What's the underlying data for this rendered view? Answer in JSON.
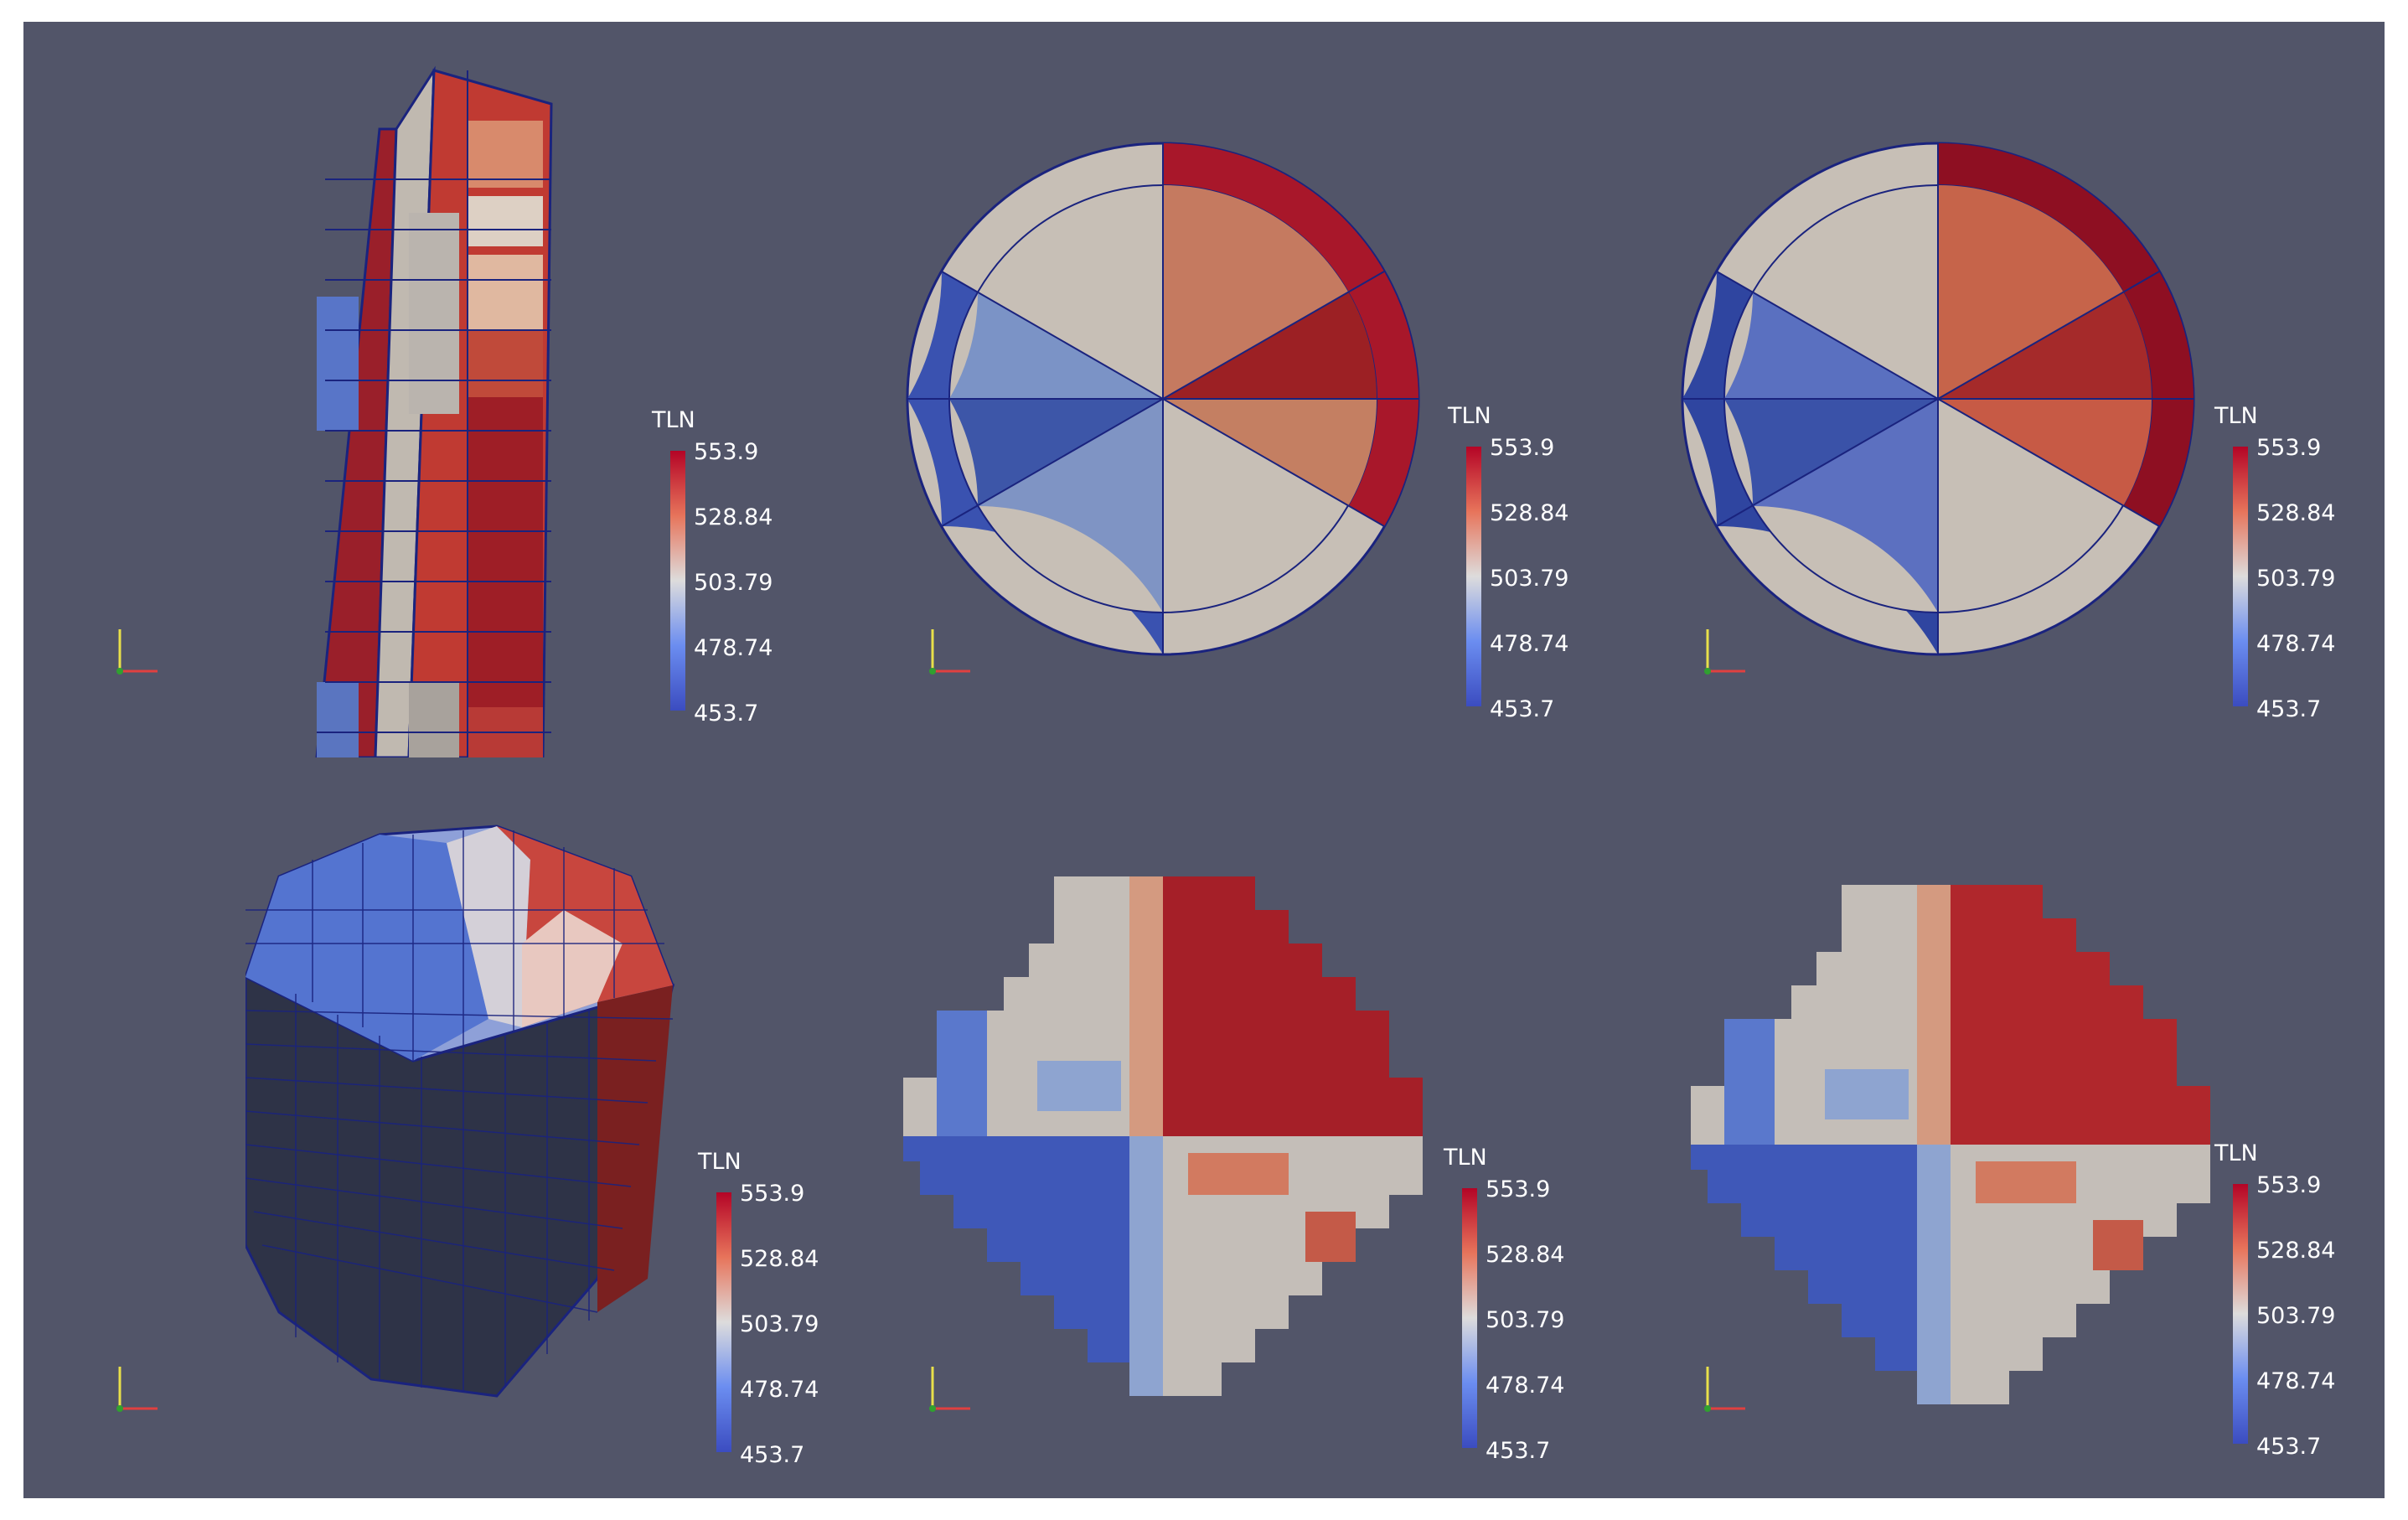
{
  "legend": {
    "title": "TLN",
    "ticks": [
      "553.9",
      "528.84",
      "503.79",
      "478.74",
      "453.7"
    ],
    "range": [
      453.7,
      553.9
    ],
    "colormap": [
      "#3b4cc0",
      "#6b8df0",
      "#dddcdc",
      "#e7745b",
      "#b40426"
    ]
  },
  "panels": [
    {
      "name": "top-left",
      "view": "3d-wedge-slice"
    },
    {
      "name": "top-middle",
      "view": "pin-cross-section"
    },
    {
      "name": "top-right",
      "view": "pin-cross-section"
    },
    {
      "name": "bottom-left",
      "view": "3d-voxel-pin"
    },
    {
      "name": "bottom-middle",
      "view": "voxel-cross-section"
    },
    {
      "name": "bottom-right",
      "view": "voxel-cross-section"
    }
  ],
  "colors": {
    "background": "#525569",
    "mesh_line": "#1a237e"
  }
}
